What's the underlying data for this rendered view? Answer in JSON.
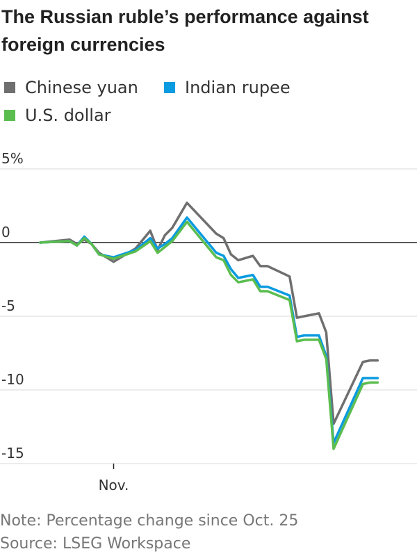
{
  "header": {
    "title": "The Russian ruble’s performance against foreign currencies"
  },
  "legend": [
    {
      "label": "Chinese yuan",
      "color": "#6f6f6f"
    },
    {
      "label": "Indian rupee",
      "color": "#0a9be0"
    },
    {
      "label": "U.S. dollar",
      "color": "#5bbd4f"
    }
  ],
  "chart_data": {
    "type": "line",
    "title": "The Russian ruble’s performance against foreign currencies",
    "xlabel": "",
    "ylabel": "",
    "ylim": [
      -15,
      5
    ],
    "grid": true,
    "legend_position": "top",
    "y_ticks": [
      {
        "value": 5,
        "label": "5%"
      },
      {
        "value": 0,
        "label": "0"
      },
      {
        "value": -5,
        "label": "-5"
      },
      {
        "value": -10,
        "label": "-10"
      },
      {
        "value": -15,
        "label": "-15"
      }
    ],
    "x_range": [
      0,
      51
    ],
    "x_ticks": [
      {
        "value": 10,
        "label": "Nov."
      }
    ],
    "series": [
      {
        "name": "Chinese yuan",
        "color": "#6f6f6f",
        "x": [
          0,
          4,
          5,
          6,
          7,
          8,
          10,
          13,
          15,
          16,
          17,
          18,
          20,
          24,
          25,
          26,
          27,
          29,
          30,
          31,
          34,
          35,
          36,
          38,
          39,
          40,
          44,
          45,
          46
        ],
        "y": [
          0,
          0.2,
          -0.1,
          0.2,
          -0.1,
          -0.7,
          -1.3,
          -0.4,
          0.8,
          -0.5,
          0.5,
          1.0,
          2.7,
          0.6,
          0.3,
          -0.8,
          -1.2,
          -0.9,
          -1.6,
          -1.6,
          -2.3,
          -5.1,
          -5.0,
          -4.8,
          -6.1,
          -12.3,
          -8.1,
          -8.0,
          -8.0
        ],
        "note": "x = approximate trading-day index since Oct. 25"
      },
      {
        "name": "Indian rupee",
        "color": "#0a9be0",
        "x": [
          0,
          4,
          5,
          6,
          7,
          8,
          10,
          13,
          15,
          16,
          17,
          18,
          20,
          24,
          25,
          26,
          27,
          29,
          30,
          31,
          34,
          35,
          36,
          38,
          39,
          40,
          44,
          45,
          46
        ],
        "y": [
          0,
          0.1,
          -0.2,
          0.4,
          -0.1,
          -0.8,
          -1.0,
          -0.5,
          0.3,
          -0.4,
          -0.1,
          0.3,
          1.7,
          -0.7,
          -0.9,
          -1.8,
          -2.4,
          -2.2,
          -3.0,
          -3.0,
          -3.6,
          -6.4,
          -6.3,
          -6.3,
          -7.7,
          -13.6,
          -9.2,
          -9.2,
          -9.2
        ]
      },
      {
        "name": "U.S. dollar",
        "color": "#5bbd4f",
        "x": [
          0,
          4,
          5,
          6,
          7,
          8,
          10,
          13,
          15,
          16,
          17,
          18,
          20,
          24,
          25,
          26,
          27,
          29,
          30,
          31,
          34,
          35,
          36,
          38,
          39,
          40,
          44,
          45,
          46
        ],
        "y": [
          0,
          0.1,
          -0.2,
          0.3,
          -0.1,
          -0.8,
          -1.1,
          -0.6,
          0.1,
          -0.7,
          -0.3,
          0.1,
          1.4,
          -1.0,
          -1.2,
          -2.2,
          -2.7,
          -2.5,
          -3.3,
          -3.3,
          -3.9,
          -6.7,
          -6.6,
          -6.6,
          -7.9,
          -14.0,
          -9.6,
          -9.5,
          -9.5
        ]
      }
    ]
  },
  "footer": {
    "note": "Note: Percentage change since Oct. 25",
    "source": "Source: LSEG Workspace"
  }
}
